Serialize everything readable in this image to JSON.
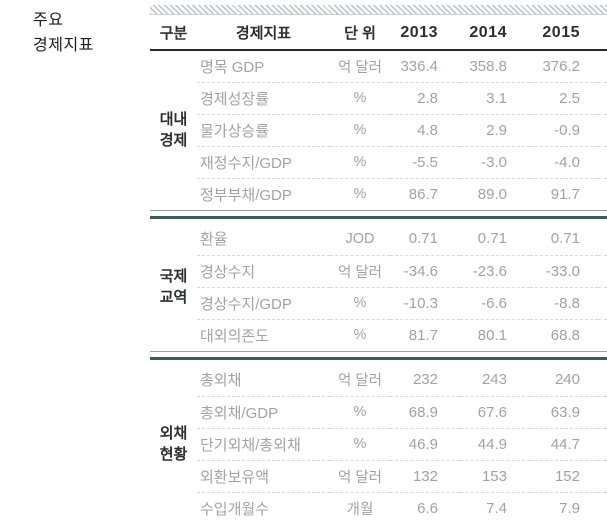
{
  "page_title": {
    "line1": "주요",
    "line2": "경제지표"
  },
  "colors": {
    "accent_teal": "#3d5a61",
    "separator_gray": "#9aa2a5",
    "hatch_stripe": "#b7c1c8",
    "header_text": "#2c2e2f",
    "data_text": "#a0a3a5",
    "row_divider": "#d6dadd",
    "header_rule": "#24282a"
  },
  "table": {
    "columns": [
      "구분",
      "경제지표",
      "단 위",
      "2013",
      "2014",
      "2015"
    ],
    "sections": [
      {
        "category": "대내경제",
        "category_lines": [
          "대내",
          "경제"
        ],
        "rows": [
          {
            "indicator": "명목 GDP",
            "unit": "억 달러",
            "values": [
              "336.4",
              "358.8",
              "376.2"
            ]
          },
          {
            "indicator": "경제성장률",
            "unit": "%",
            "values": [
              "2.8",
              "3.1",
              "2.5"
            ]
          },
          {
            "indicator": "물가상승률",
            "unit": "%",
            "values": [
              "4.8",
              "2.9",
              "-0.9"
            ]
          },
          {
            "indicator": "재정수지/GDP",
            "unit": "%",
            "values": [
              "-5.5",
              "-3.0",
              "-4.0"
            ]
          },
          {
            "indicator": "정부부채/GDP",
            "unit": "%",
            "values": [
              "86.7",
              "89.0",
              "91.7"
            ]
          }
        ]
      },
      {
        "category": "국제교역",
        "category_lines": [
          "국제",
          "교역"
        ],
        "rows": [
          {
            "indicator": "환율",
            "unit": "JOD",
            "values": [
              "0.71",
              "0.71",
              "0.71"
            ]
          },
          {
            "indicator": "경상수지",
            "unit": "억 달러",
            "values": [
              "-34.6",
              "-23.6",
              "-33.0"
            ]
          },
          {
            "indicator": "경상수지/GDP",
            "unit": "%",
            "values": [
              "-10.3",
              "-6.6",
              "-8.8"
            ]
          },
          {
            "indicator": "대외의존도",
            "unit": "%",
            "values": [
              "81.7",
              "80.1",
              "68.8"
            ]
          }
        ]
      },
      {
        "category": "외채현황",
        "category_lines": [
          "외채",
          "현황"
        ],
        "rows": [
          {
            "indicator": "총외채",
            "unit": "억 달러",
            "values": [
              "232",
              "243",
              "240"
            ]
          },
          {
            "indicator": "총외채/GDP",
            "unit": "%",
            "values": [
              "68.9",
              "67.6",
              "63.9"
            ]
          },
          {
            "indicator": "단기외채/총외채",
            "unit": "%",
            "values": [
              "46.9",
              "44.9",
              "44.7"
            ]
          },
          {
            "indicator": "외환보유액",
            "unit": "억 달러",
            "values": [
              "132",
              "153",
              "152"
            ]
          },
          {
            "indicator": "수입개월수",
            "unit": "개월",
            "values": [
              "6.6",
              "7.4",
              "7.9"
            ]
          }
        ]
      }
    ]
  }
}
